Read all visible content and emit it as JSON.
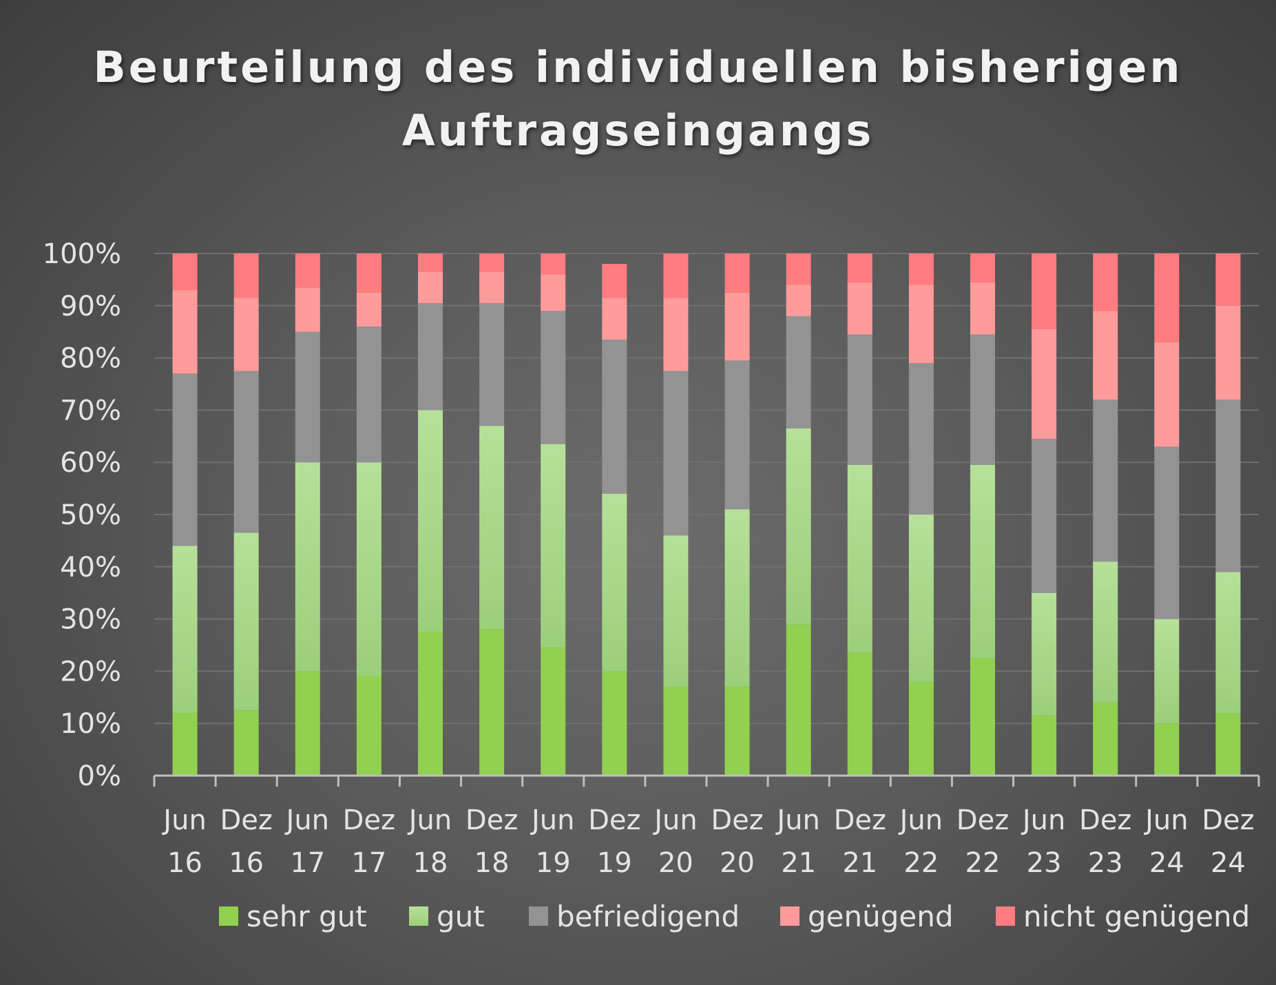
{
  "colors": {
    "sehr_gut": "#92d050",
    "gut": "#b6e099",
    "befriedigend": "#939393",
    "genuegend": "#ff9b9b",
    "nicht_genuegend": "#ff7c80",
    "gridline": "#707070",
    "axis": "#bfbfbf"
  },
  "chart_data": {
    "type": "bar",
    "stacked": true,
    "percent": true,
    "title": "Beurteilung des individuellen bisherigen Auftragseingangs",
    "title_lines": [
      "Beurteilung des individuellen bisherigen",
      "Auftragseingangs"
    ],
    "xlabel": "",
    "ylabel": "",
    "ylim": [
      0,
      100
    ],
    "yticks": [
      "0%",
      "10%",
      "20%",
      "30%",
      "40%",
      "50%",
      "60%",
      "70%",
      "80%",
      "90%",
      "100%"
    ],
    "grid": true,
    "legend_position": "bottom",
    "categories": [
      [
        "Jun",
        "16"
      ],
      [
        "Dez",
        "16"
      ],
      [
        "Jun",
        "17"
      ],
      [
        "Dez",
        "17"
      ],
      [
        "Jun",
        "18"
      ],
      [
        "Dez",
        "18"
      ],
      [
        "Jun",
        "19"
      ],
      [
        "Dez",
        "19"
      ],
      [
        "Jun",
        "20"
      ],
      [
        "Dez",
        "20"
      ],
      [
        "Jun",
        "21"
      ],
      [
        "Dez",
        "21"
      ],
      [
        "Jun",
        "22"
      ],
      [
        "Dez",
        "22"
      ],
      [
        "Jun",
        "23"
      ],
      [
        "Dez",
        "23"
      ],
      [
        "Jun",
        "24"
      ],
      [
        "Dez",
        "24"
      ]
    ],
    "series": [
      {
        "name": "sehr gut",
        "color_key": "sehr_gut",
        "values": [
          12,
          12.5,
          20,
          19,
          27.5,
          28,
          24.5,
          20,
          17,
          17,
          29,
          23.5,
          18,
          22.5,
          11.5,
          14,
          10,
          12
        ]
      },
      {
        "name": "gut",
        "color_key": "gut",
        "values": [
          32,
          34,
          40,
          41,
          42.5,
          39,
          39,
          34,
          29,
          34,
          37.5,
          36,
          32,
          37,
          23.5,
          27,
          20,
          27
        ]
      },
      {
        "name": "befriedigend",
        "color_key": "befriedigend",
        "values": [
          33,
          31,
          25,
          26,
          20.5,
          23.5,
          25.5,
          29.5,
          31.5,
          28.5,
          21.5,
          25,
          29,
          25,
          29.5,
          31,
          33,
          33
        ]
      },
      {
        "name": "genügend",
        "color_key": "genuegend",
        "values": [
          16,
          14,
          8.5,
          6.5,
          6,
          6,
          7,
          8,
          14,
          13,
          6,
          10,
          15,
          10,
          21,
          17,
          20,
          18
        ]
      },
      {
        "name": "nicht genügend",
        "color_key": "nicht_genuegend",
        "values": [
          7,
          8.5,
          6.5,
          7.5,
          3.5,
          3.5,
          4,
          6.5,
          8.5,
          7.5,
          6,
          5.5,
          6,
          5.5,
          14.5,
          11,
          17,
          10
        ]
      }
    ]
  }
}
